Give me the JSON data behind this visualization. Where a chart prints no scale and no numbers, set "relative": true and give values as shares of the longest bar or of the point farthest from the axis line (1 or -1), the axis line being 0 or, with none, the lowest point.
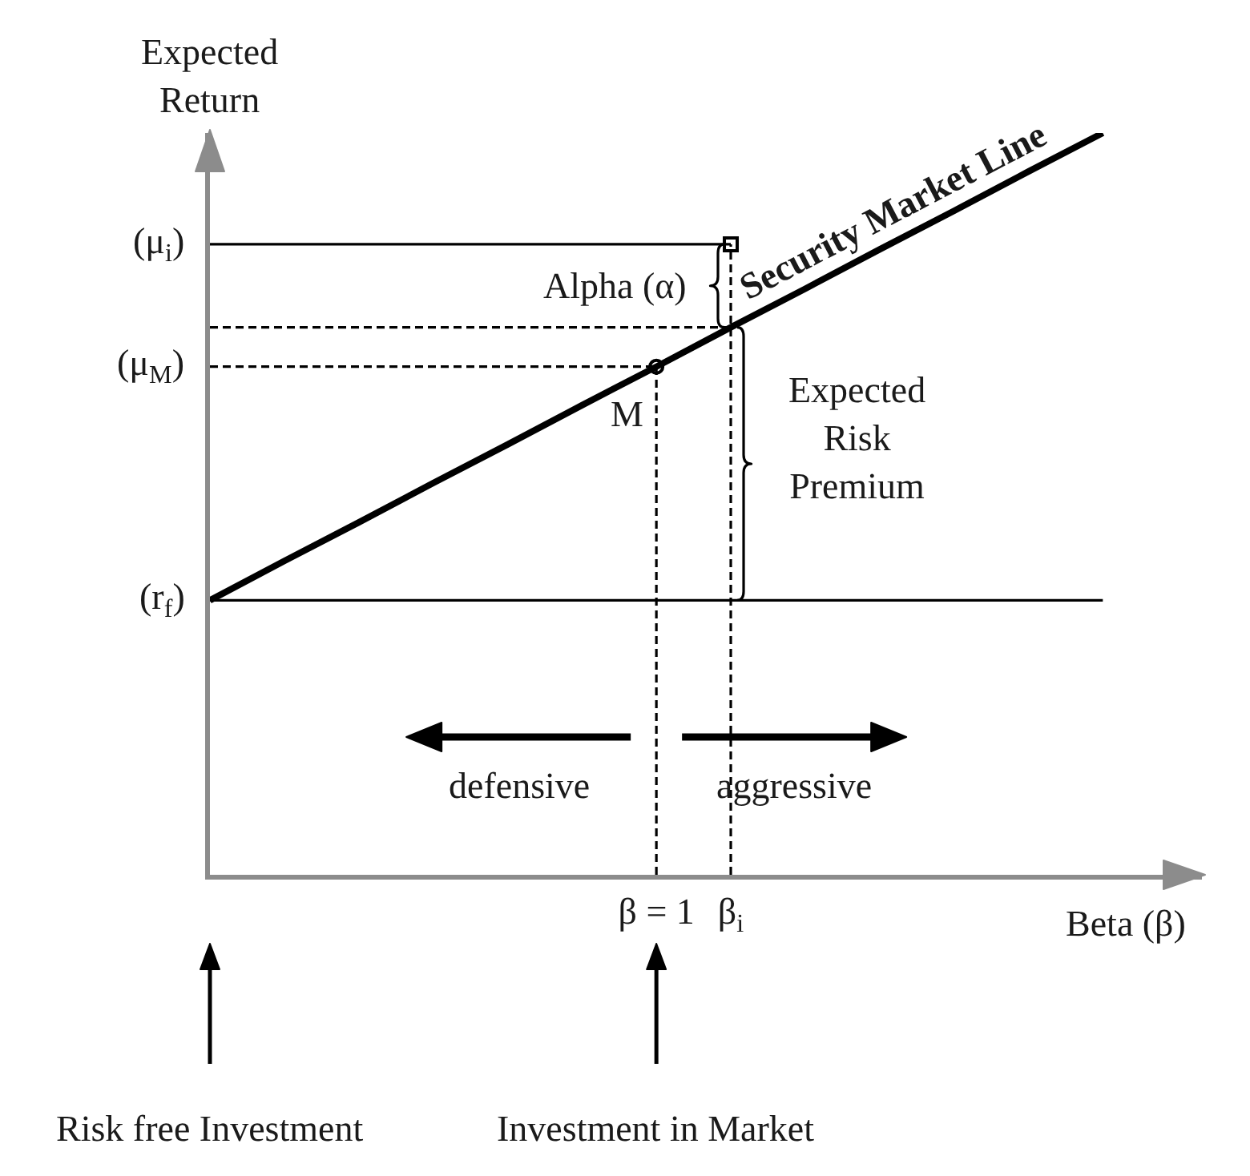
{
  "chart_data": {
    "type": "line",
    "relative": true,
    "xlabel": "Beta (β)",
    "ylabel": "Expected Return",
    "line_style": "solid",
    "categories": [
      null,
      null,
      null,
      null,
      null,
      null,
      "β = 1",
      "β$_{i}$",
      null,
      null,
      null,
      null,
      null
    ],
    "series": [
      {
        "name": "Security Market Line",
        "color": "#000000",
        "values": [
          0.37,
          0.423,
          0.475,
          0.528,
          0.58,
          0.633,
          0.685,
          0.738,
          0.79,
          0.843,
          0.895,
          0.948,
          1
        ]
      },
      {
        "color": "#000000",
        "values": [
          0.37,
          0.37,
          0.37,
          0.37,
          0.37,
          0.37,
          0.37,
          0.37,
          0.37,
          0.37,
          0.37,
          0.37,
          0.37
        ]
      },
      {
        "color": "#000000",
        "values": [
          0.85,
          0.85,
          0.85,
          0.85,
          0.85,
          0.85,
          0.85,
          0.85,
          null,
          null,
          null,
          null,
          null
        ]
      },
      {
        "color": "#000000",
        "line_style": "dashed",
        "values": [
          0.685,
          0.685,
          0.685,
          0.685,
          0.685,
          0.685,
          0.685,
          null,
          null,
          null,
          null,
          null,
          null
        ]
      },
      {
        "color": "#000000",
        "line_style": "dashed",
        "values": [
          0.738,
          0.738,
          0.738,
          0.738,
          0.738,
          0.738,
          0.738,
          0.738,
          null,
          null,
          null,
          null,
          null
        ]
      },
      {
        "name": "M",
        "type": "lollipop",
        "marker": "circle",
        "line_style": "dashed",
        "color": "#000000",
        "values": [
          null,
          null,
          null,
          null,
          null,
          null,
          0.685,
          null,
          null,
          null,
          null,
          null,
          null
        ]
      },
      {
        "type": "lollipop",
        "marker": "square",
        "line_style": "dashed",
        "color": "#000000",
        "values": [
          null,
          null,
          null,
          null,
          null,
          null,
          null,
          0.85,
          null,
          null,
          null,
          null,
          null
        ]
      }
    ],
    "annotations": [
      "(μ$_{i}$)",
      "(μ$_{M}$)",
      "(r$_{f}$)",
      "Alpha (α)",
      "Expected Risk Premium",
      "defensive",
      "aggressive",
      "Risk free Investment",
      "Investment in Market"
    ]
  }
}
